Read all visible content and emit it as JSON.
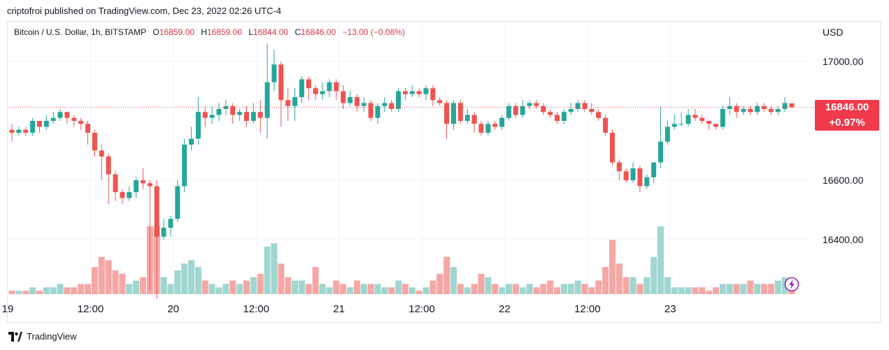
{
  "header": {
    "published": "criptofroi published on TradingView.com, Dec 23, 2022 02:26 UTC-4"
  },
  "legend": {
    "symbol": "Bitcoin / U.S. Dollar, 1h, BITSTAMP",
    "o_label": "O",
    "o_value": "16859.00",
    "h_label": "H",
    "h_value": "16859.00",
    "l_label": "L",
    "l_value": "16844.00",
    "c_label": "C",
    "c_value": "16846.00",
    "change": "−13.00 (−0.08%)"
  },
  "price_axis": {
    "currency": "USD",
    "last_price": "16846.00",
    "last_change": "+0.97%"
  },
  "footer": {
    "brand": "TradingView"
  },
  "colors": {
    "up": "#26a69a",
    "down": "#ef5350",
    "vol_up": "#9fd6cf",
    "vol_down": "#f5a7a5",
    "grid": "#f0f3fa",
    "price_line": "#ef5350",
    "tag": "#f0394a"
  },
  "icons": {
    "logo": "tradingview-logo-icon",
    "bolt": "lightning-bolt-icon"
  },
  "chart_data": {
    "type": "candlestick",
    "interval": "1h",
    "y_ticks": [
      "17000.00",
      "16600.00",
      "16400.00"
    ],
    "x_ticks": [
      "19",
      "12:00",
      "20",
      "12:00",
      "21",
      "12:00",
      "22",
      "12:00",
      "23"
    ],
    "ylim": [
      16200,
      17160
    ],
    "grid": true,
    "last_close": 16846,
    "candles": [
      [
        16770,
        16760,
        16790,
        16730,
        1
      ],
      [
        16760,
        16770,
        16780,
        16750,
        1
      ],
      [
        16770,
        16760,
        16780,
        16750,
        1
      ],
      [
        16760,
        16800,
        16810,
        16750,
        2
      ],
      [
        16800,
        16780,
        16800,
        16760,
        1
      ],
      [
        16780,
        16800,
        16820,
        16770,
        2
      ],
      [
        16800,
        16810,
        16830,
        16790,
        2
      ],
      [
        16810,
        16830,
        16840,
        16800,
        3
      ],
      [
        16830,
        16810,
        16830,
        16790,
        2
      ],
      [
        16810,
        16800,
        16820,
        16780,
        2
      ],
      [
        16800,
        16790,
        16810,
        16770,
        3
      ],
      [
        16790,
        16760,
        16800,
        16720,
        3
      ],
      [
        16760,
        16700,
        16770,
        16680,
        8
      ],
      [
        16700,
        16680,
        16720,
        16600,
        11
      ],
      [
        16680,
        16620,
        16690,
        16520,
        10
      ],
      [
        16620,
        16560,
        16630,
        16530,
        7
      ],
      [
        16560,
        16540,
        16570,
        16520,
        6
      ],
      [
        16540,
        16560,
        16580,
        16530,
        3
      ],
      [
        16560,
        16600,
        16610,
        16540,
        4
      ],
      [
        16600,
        16590,
        16640,
        16570,
        5
      ],
      [
        16590,
        16580,
        16600,
        16230,
        20
      ],
      [
        16580,
        16410,
        16600,
        16200,
        20
      ],
      [
        16410,
        16440,
        16470,
        16400,
        5
      ],
      [
        16440,
        16470,
        16480,
        16410,
        3
      ],
      [
        16470,
        16580,
        16600,
        16460,
        7
      ],
      [
        16580,
        16720,
        16740,
        16560,
        9
      ],
      [
        16720,
        16740,
        16780,
        16700,
        10
      ],
      [
        16740,
        16830,
        16880,
        16720,
        8
      ],
      [
        16830,
        16810,
        16850,
        16780,
        4
      ],
      [
        16810,
        16820,
        16850,
        16790,
        3
      ],
      [
        16820,
        16840,
        16860,
        16800,
        2
      ],
      [
        16840,
        16850,
        16870,
        16820,
        3
      ],
      [
        16850,
        16820,
        16860,
        16790,
        4
      ],
      [
        16820,
        16830,
        16840,
        16800,
        3
      ],
      [
        16830,
        16800,
        16850,
        16780,
        4
      ],
      [
        16800,
        16830,
        16860,
        16790,
        5
      ],
      [
        16830,
        16810,
        16870,
        16760,
        6
      ],
      [
        16810,
        16930,
        17060,
        16740,
        14
      ],
      [
        16930,
        16990,
        17040,
        16900,
        15
      ],
      [
        16990,
        16870,
        17000,
        16780,
        9
      ],
      [
        16870,
        16850,
        16910,
        16800,
        5
      ],
      [
        16850,
        16880,
        16910,
        16800,
        4
      ],
      [
        16880,
        16940,
        16950,
        16860,
        4
      ],
      [
        16940,
        16910,
        16950,
        16870,
        3
      ],
      [
        16910,
        16890,
        16920,
        16870,
        8
      ],
      [
        16890,
        16900,
        16930,
        16870,
        3
      ],
      [
        16900,
        16930,
        16940,
        16880,
        2
      ],
      [
        16930,
        16900,
        16940,
        16870,
        4
      ],
      [
        16900,
        16860,
        16920,
        16840,
        3
      ],
      [
        16860,
        16880,
        16900,
        16850,
        2
      ],
      [
        16880,
        16850,
        16890,
        16830,
        4
      ],
      [
        16850,
        16860,
        16880,
        16830,
        3
      ],
      [
        16860,
        16810,
        16870,
        16800,
        3
      ],
      [
        16810,
        16850,
        16860,
        16790,
        3
      ],
      [
        16850,
        16860,
        16880,
        16830,
        2
      ],
      [
        16860,
        16840,
        16870,
        16830,
        2
      ],
      [
        16840,
        16900,
        16910,
        16830,
        4
      ],
      [
        16900,
        16890,
        16910,
        16870,
        3
      ],
      [
        16890,
        16900,
        16920,
        16880,
        2
      ],
      [
        16900,
        16890,
        16910,
        16880,
        1
      ],
      [
        16890,
        16910,
        16920,
        16870,
        2
      ],
      [
        16910,
        16870,
        16920,
        16850,
        4
      ],
      [
        16870,
        16860,
        16880,
        16850,
        6
      ],
      [
        16860,
        16790,
        16870,
        16740,
        11
      ],
      [
        16790,
        16860,
        16870,
        16770,
        8
      ],
      [
        16860,
        16800,
        16870,
        16790,
        3
      ],
      [
        16800,
        16820,
        16840,
        16790,
        2
      ],
      [
        16820,
        16790,
        16830,
        16760,
        3
      ],
      [
        16790,
        16760,
        16800,
        16750,
        6
      ],
      [
        16760,
        16790,
        16800,
        16750,
        5
      ],
      [
        16790,
        16780,
        16800,
        16770,
        3
      ],
      [
        16780,
        16810,
        16820,
        16770,
        2
      ],
      [
        16810,
        16850,
        16860,
        16800,
        3
      ],
      [
        16850,
        16820,
        16860,
        16810,
        3
      ],
      [
        16820,
        16850,
        16870,
        16810,
        2
      ],
      [
        16850,
        16860,
        16870,
        16840,
        3
      ],
      [
        16860,
        16850,
        16870,
        16840,
        2
      ],
      [
        16850,
        16830,
        16860,
        16820,
        3
      ],
      [
        16830,
        16820,
        16840,
        16810,
        4
      ],
      [
        16820,
        16800,
        16830,
        16790,
        2
      ],
      [
        16800,
        16830,
        16840,
        16790,
        3
      ],
      [
        16830,
        16840,
        16860,
        16820,
        3
      ],
      [
        16840,
        16860,
        16870,
        16830,
        4
      ],
      [
        16860,
        16840,
        16870,
        16830,
        3
      ],
      [
        16840,
        16830,
        16860,
        16820,
        2
      ],
      [
        16830,
        16810,
        16840,
        16800,
        4
      ],
      [
        16810,
        16760,
        16820,
        16750,
        8
      ],
      [
        16760,
        16660,
        16770,
        16650,
        16
      ],
      [
        16660,
        16630,
        16670,
        16600,
        9
      ],
      [
        16630,
        16600,
        16640,
        16590,
        5
      ],
      [
        16600,
        16640,
        16660,
        16590,
        5
      ],
      [
        16640,
        16580,
        16650,
        16560,
        3
      ],
      [
        16580,
        16610,
        16620,
        16570,
        5
      ],
      [
        16610,
        16660,
        16660,
        16590,
        11
      ],
      [
        16660,
        16730,
        16850,
        16640,
        20
      ],
      [
        16730,
        16780,
        16800,
        16720,
        5
      ],
      [
        16780,
        16790,
        16820,
        16770,
        2
      ],
      [
        16790,
        16790,
        16830,
        16780,
        2
      ],
      [
        16790,
        16820,
        16840,
        16780,
        2
      ],
      [
        16820,
        16810,
        16840,
        16800,
        2
      ],
      [
        16810,
        16800,
        16820,
        16790,
        2
      ],
      [
        16800,
        16790,
        16800,
        16770,
        1
      ],
      [
        16790,
        16780,
        16790,
        16770,
        2
      ],
      [
        16780,
        16840,
        16850,
        16770,
        3
      ],
      [
        16840,
        16850,
        16880,
        16820,
        3
      ],
      [
        16850,
        16830,
        16860,
        16810,
        3
      ],
      [
        16830,
        16840,
        16850,
        16820,
        3
      ],
      [
        16840,
        16830,
        16850,
        16820,
        4
      ],
      [
        16830,
        16850,
        16860,
        16820,
        3
      ],
      [
        16850,
        16840,
        16860,
        16830,
        3
      ],
      [
        16840,
        16830,
        16850,
        16820,
        3
      ],
      [
        16830,
        16840,
        16850,
        16820,
        4
      ],
      [
        16840,
        16860,
        16880,
        16830,
        5
      ],
      [
        16859,
        16846,
        16859,
        16844,
        4
      ]
    ]
  }
}
